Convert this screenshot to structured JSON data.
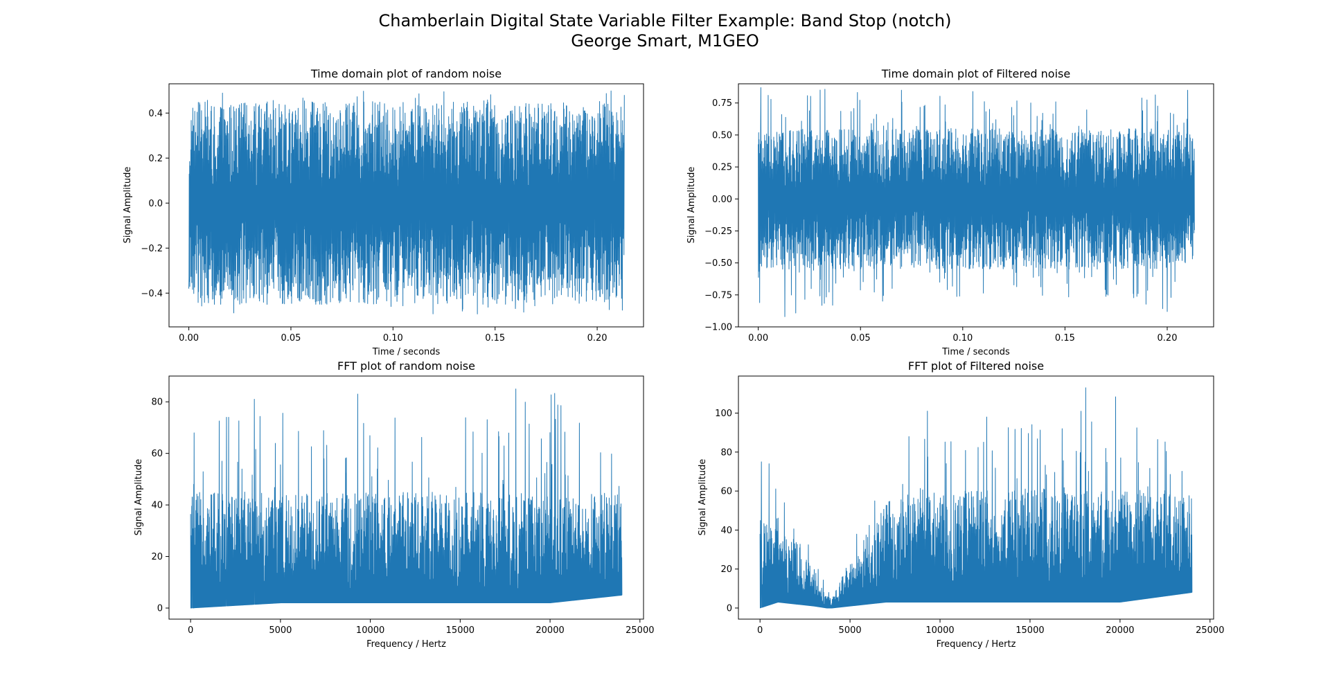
{
  "figure": {
    "title_line1": "Chamberlain Digital State Variable Filter Example: Band Stop (notch)",
    "title_line2": "George Smart, M1GEO",
    "line_color": "#1f77b4"
  },
  "chart_data": [
    {
      "id": "time-random",
      "type": "line",
      "title": "Time domain plot of random noise",
      "xlabel": "Time / seconds",
      "ylabel": "Signal Amplitude",
      "xlim": [
        -0.0097,
        0.2227
      ],
      "ylim": [
        -0.55,
        0.53
      ],
      "xticks": [
        0.0,
        0.05,
        0.1,
        0.15,
        0.2
      ],
      "xtick_labels": [
        "0.00",
        "0.05",
        "0.10",
        "0.15",
        "0.20"
      ],
      "yticks": [
        -0.4,
        -0.2,
        0.0,
        0.2,
        0.4
      ],
      "ytick_labels": [
        "−0.4",
        "−0.2",
        "0.0",
        "0.2",
        "0.4"
      ],
      "series": [
        {
          "x_range": [
            0.0,
            0.2133
          ],
          "n_samples": 10240,
          "envelope": {
            "x": [
              0.0,
              0.05,
              0.1,
              0.15,
              0.2,
              0.2133
            ],
            "ymin": [
              -0.5,
              -0.5,
              -0.5,
              -0.5,
              -0.5,
              -0.5
            ],
            "ymax": [
              0.5,
              0.5,
              0.5,
              0.5,
              0.5,
              0.5
            ],
            "typical": [
              0.45,
              0.45,
              0.45,
              0.45,
              0.45,
              0.45
            ]
          },
          "spikes": [
            {
              "x": 0.0,
              "y": 0.41
            },
            {
              "x": 0.0,
              "y": -0.38
            },
            {
              "x": 0.025,
              "y": -0.35
            },
            {
              "x": 0.065,
              "y": -0.45
            },
            {
              "x": 0.16,
              "y": -0.4
            },
            {
              "x": 0.2133,
              "y": 0.48
            }
          ]
        }
      ]
    },
    {
      "id": "time-filtered",
      "type": "line",
      "title": "Time domain plot of Filtered noise",
      "xlabel": "Time / seconds",
      "ylabel": "Signal Amplitude",
      "xlim": [
        -0.0097,
        0.2227
      ],
      "ylim": [
        -1.0,
        0.9
      ],
      "xticks": [
        0.0,
        0.05,
        0.1,
        0.15,
        0.2
      ],
      "xtick_labels": [
        "0.00",
        "0.05",
        "0.10",
        "0.15",
        "0.20"
      ],
      "yticks": [
        -1.0,
        -0.75,
        -0.5,
        -0.25,
        0.0,
        0.25,
        0.5,
        0.75
      ],
      "ytick_labels": [
        "−1.00",
        "−0.75",
        "−0.50",
        "−0.25",
        "0.00",
        "0.25",
        "0.50",
        "0.75"
      ],
      "series": [
        {
          "x_range": [
            0.0,
            0.2133
          ],
          "n_samples": 10240,
          "envelope": {
            "x": [
              0.0,
              0.05,
              0.1,
              0.15,
              0.2,
              0.2133
            ],
            "ymin": [
              -0.92,
              -0.85,
              -0.8,
              -0.8,
              -0.88,
              -0.6
            ],
            "ymax": [
              0.88,
              0.85,
              0.8,
              0.82,
              0.85,
              0.55
            ],
            "typical": [
              0.55,
              0.55,
              0.55,
              0.55,
              0.55,
              0.5
            ]
          },
          "spikes": [
            {
              "x": 0.0013,
              "y": 0.87
            },
            {
              "x": 0.013,
              "y": -0.92
            },
            {
              "x": 0.07,
              "y": 0.85
            },
            {
              "x": 0.105,
              "y": 0.84
            },
            {
              "x": 0.2,
              "y": -0.88
            },
            {
              "x": 0.21,
              "y": 0.85
            }
          ]
        }
      ]
    },
    {
      "id": "fft-random",
      "type": "line",
      "title": "FFT plot of random noise",
      "xlabel": "Frequency / Hertz",
      "ylabel": "Signal Amplitude",
      "xlim": [
        -1200,
        25200
      ],
      "ylim": [
        -4.3,
        90
      ],
      "xticks": [
        0,
        5000,
        10000,
        15000,
        20000,
        25000
      ],
      "xtick_labels": [
        "0",
        "5000",
        "10000",
        "15000",
        "20000",
        "25000"
      ],
      "yticks": [
        0,
        20,
        40,
        60,
        80
      ],
      "ytick_labels": [
        "0",
        "20",
        "40",
        "60",
        "80"
      ],
      "series": [
        {
          "x_range": [
            0,
            24000
          ],
          "n_samples": 5120,
          "envelope": {
            "x": [
              0,
              5000,
              10000,
              15000,
              20000,
              24000
            ],
            "ymin": [
              0,
              2,
              2,
              2,
              2,
              5
            ],
            "ymax": [
              75,
              78,
              82,
              75,
              85,
              60
            ],
            "typical": [
              45,
              45,
              45,
              45,
              45,
              45
            ]
          },
          "spikes": [
            {
              "x": 100,
              "y": 43
            },
            {
              "x": 150,
              "y": 0
            },
            {
              "x": 3550,
              "y": 81
            },
            {
              "x": 9300,
              "y": 83
            },
            {
              "x": 18100,
              "y": 85
            },
            {
              "x": 2000,
              "y": 74
            }
          ]
        }
      ]
    },
    {
      "id": "fft-filtered",
      "type": "line",
      "title": "FFT plot of Filtered noise",
      "xlabel": "Frequency / Hertz",
      "ylabel": "Signal Amplitude",
      "xlim": [
        -1200,
        25200
      ],
      "ylim": [
        -5.7,
        119
      ],
      "xticks": [
        0,
        5000,
        10000,
        15000,
        20000,
        25000
      ],
      "xtick_labels": [
        "0",
        "5000",
        "10000",
        "15000",
        "20000",
        "25000"
      ],
      "yticks": [
        0,
        20,
        40,
        60,
        80,
        100
      ],
      "ytick_labels": [
        "0",
        "20",
        "40",
        "60",
        "80",
        "100"
      ],
      "series": [
        {
          "x_range": [
            0,
            24000
          ],
          "n_samples": 5120,
          "envelope": {
            "x": [
              0,
              1000,
              2000,
              3000,
              3700,
              4000,
              5000,
              6000,
              7000,
              9000,
              12000,
              16000,
              20000,
              24000
            ],
            "ymin": [
              0,
              3,
              2,
              1,
              0,
              0,
              1,
              2,
              3,
              3,
              3,
              3,
              3,
              8
            ],
            "ymax": [
              75,
              60,
              52,
              30,
              12,
              8,
              35,
              48,
              70,
              100,
              90,
              100,
              113,
              80
            ],
            "typical": [
              45,
              40,
              35,
              20,
              6,
              5,
              25,
              40,
              55,
              60,
              62,
              62,
              62,
              60
            ]
          },
          "spikes": [
            {
              "x": 80,
              "y": 75
            },
            {
              "x": 500,
              "y": 74
            },
            {
              "x": 9300,
              "y": 101
            },
            {
              "x": 18100,
              "y": 113
            },
            {
              "x": 12600,
              "y": 98
            },
            {
              "x": 3900,
              "y": 0
            }
          ]
        }
      ]
    }
  ]
}
